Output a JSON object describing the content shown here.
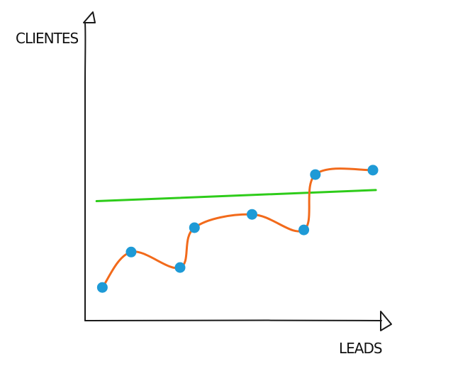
{
  "chart_data": {
    "type": "scatter",
    "title": "",
    "xlabel": "LEADS",
    "ylabel": "CLIENTES",
    "grid": false,
    "xlim": [
      0,
      10
    ],
    "ylim": [
      0,
      10
    ],
    "series": [
      {
        "kind": "points",
        "color": "#1e9ad6",
        "x": [
          0.6,
          1.6,
          3.3,
          3.8,
          5.8,
          7.6,
          8.0,
          10.0
        ],
        "y": [
          1.5,
          3.1,
          2.4,
          4.2,
          4.8,
          4.1,
          6.6,
          6.8
        ]
      },
      {
        "kind": "smooth-line",
        "color": "#f26a1b",
        "x": [
          0.6,
          1.6,
          3.3,
          3.8,
          5.8,
          7.6,
          8.0,
          10.0
        ],
        "y": [
          1.5,
          3.1,
          2.4,
          4.2,
          4.8,
          4.1,
          6.6,
          6.8
        ]
      },
      {
        "kind": "trend-line",
        "color": "#2ecc1a",
        "x": [
          0.4,
          10.1
        ],
        "y": [
          5.4,
          5.9
        ]
      }
    ]
  }
}
